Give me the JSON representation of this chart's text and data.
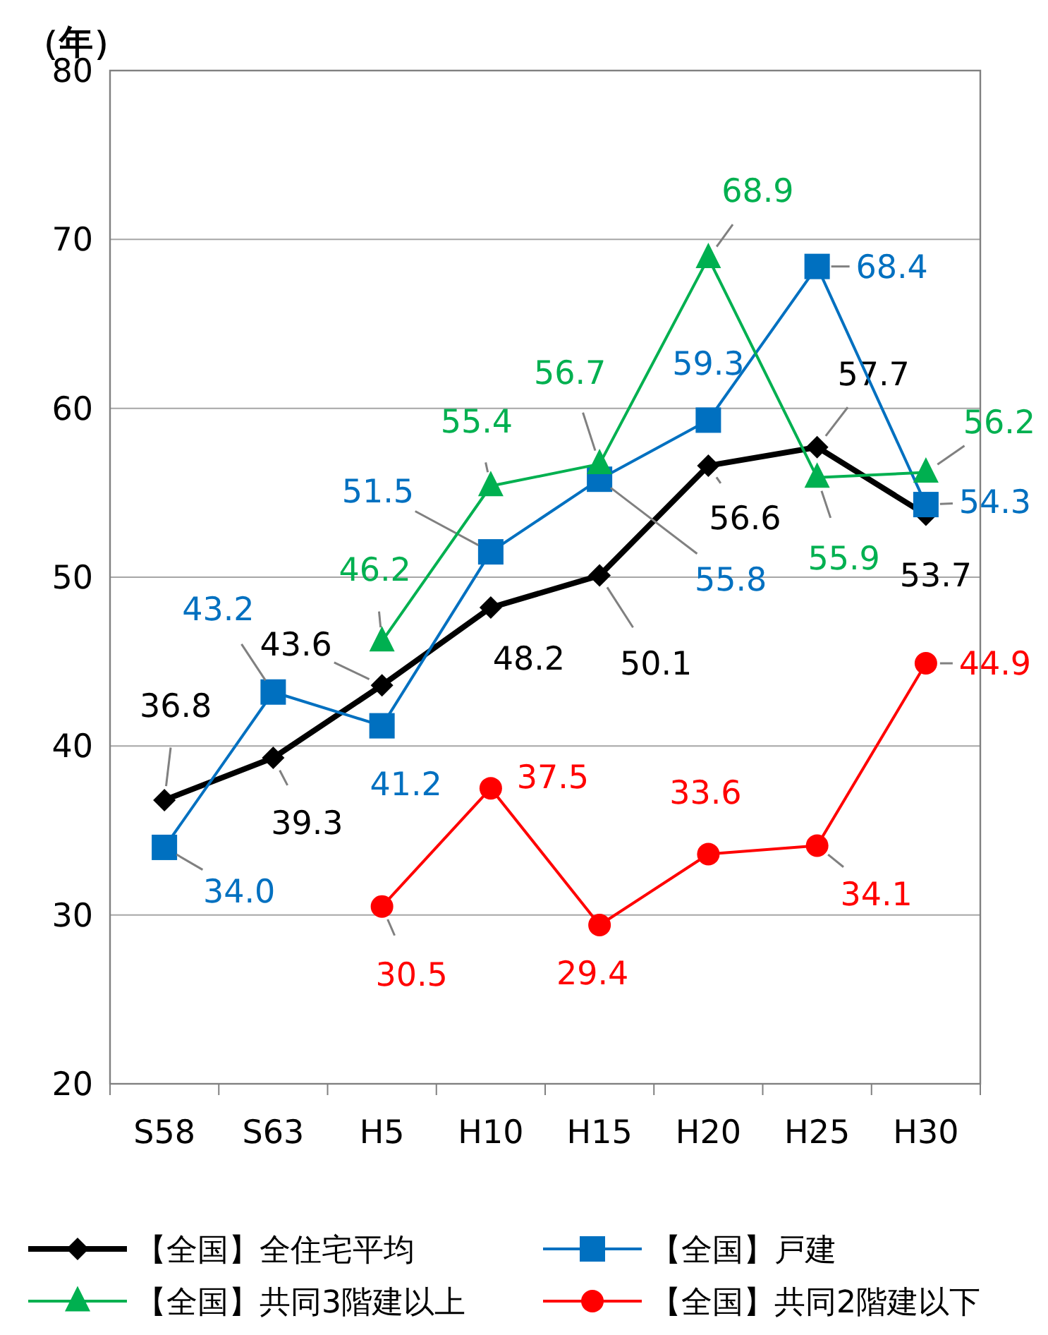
{
  "chart_data": {
    "type": "line",
    "ylabel": "（年）",
    "categories": [
      "S58",
      "S63",
      "H5",
      "H10",
      "H15",
      "H20",
      "H25",
      "H30"
    ],
    "series": [
      {
        "name": "【全国】全住宅平均",
        "color": "#000000",
        "marker": "diamond",
        "values": [
          36.8,
          39.3,
          43.6,
          48.2,
          50.1,
          56.6,
          57.7,
          53.7
        ],
        "value_labels": [
          "36.8",
          "39.3",
          "43.6",
          "48.2",
          "50.1",
          "56.6",
          "57.7",
          "53.7"
        ]
      },
      {
        "name": "【全国】戸建",
        "color": "#0070c0",
        "marker": "square",
        "values": [
          34.0,
          43.2,
          41.2,
          51.5,
          55.8,
          59.3,
          68.4,
          54.3
        ],
        "value_labels": [
          "34.0",
          "43.2",
          "41.2",
          "51.5",
          "55.8",
          "59.3",
          "68.4",
          "54.3"
        ]
      },
      {
        "name": "【全国】共同3階建以上",
        "color": "#00b050",
        "marker": "triangle",
        "values": [
          null,
          null,
          46.2,
          55.4,
          56.7,
          68.9,
          55.9,
          56.2
        ],
        "value_labels": [
          null,
          null,
          "46.2",
          "55.4",
          "56.7",
          "68.9",
          "55.9",
          "56.2"
        ]
      },
      {
        "name": "【全国】共同2階建以下",
        "color": "#ff0000",
        "marker": "circle",
        "values": [
          null,
          null,
          30.5,
          37.5,
          29.4,
          33.6,
          34.1,
          44.9
        ],
        "value_labels": [
          null,
          null,
          "30.5",
          "37.5",
          "29.4",
          "33.6",
          "34.1",
          "44.9"
        ]
      }
    ],
    "ylim": [
      20,
      80
    ],
    "yticks": [
      20,
      30,
      40,
      50,
      60,
      70,
      80
    ],
    "grid": "y",
    "legend": "bottom"
  }
}
